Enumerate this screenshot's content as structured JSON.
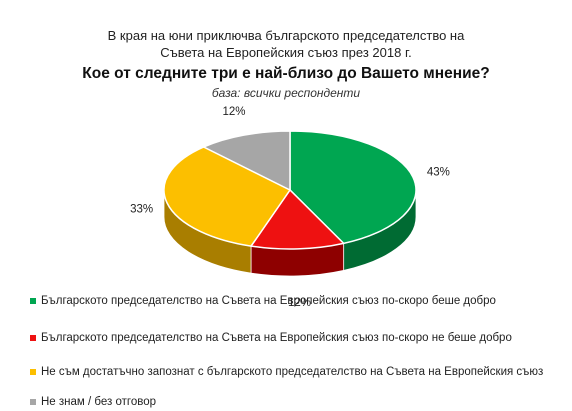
{
  "header": {
    "line1": "В края на юни приключва българското председателство на",
    "line2": "Съвета на Европейския съюз през 2018 г.",
    "title": "Кое от следните три е най-близо до Вашето мнение?",
    "subtitle": "база: всички респонденти"
  },
  "chart_data": {
    "type": "pie",
    "style": "3d",
    "title": "Кое от следните три е най-близо до Вашето мнение?",
    "subtitle": "база: всички респонденти",
    "legend_position": "bottom",
    "slices": [
      {
        "name": "Българското председателство на Съвета на Евpопейския съюз по-скоро беше добро",
        "value": 43,
        "label": "43%",
        "color": "#00a651",
        "dark": "#006b33"
      },
      {
        "name": "Българското председателство на Съвета на Европейския съюз по-скоро не беше добро",
        "value": 12,
        "label": "12%",
        "color": "#ee1111",
        "dark": "#8e0000"
      },
      {
        "name": "Не съм достатъчно запознат с българското председателство на Съвета на Европейския съюз",
        "value": 33,
        "label": "33%",
        "color": "#fcbf00",
        "dark": "#a97e00"
      },
      {
        "name": "Не знам / без отговор",
        "value": 12,
        "label": "12%",
        "color": "#a6a6a6",
        "dark": "#6d6d6d"
      }
    ]
  }
}
